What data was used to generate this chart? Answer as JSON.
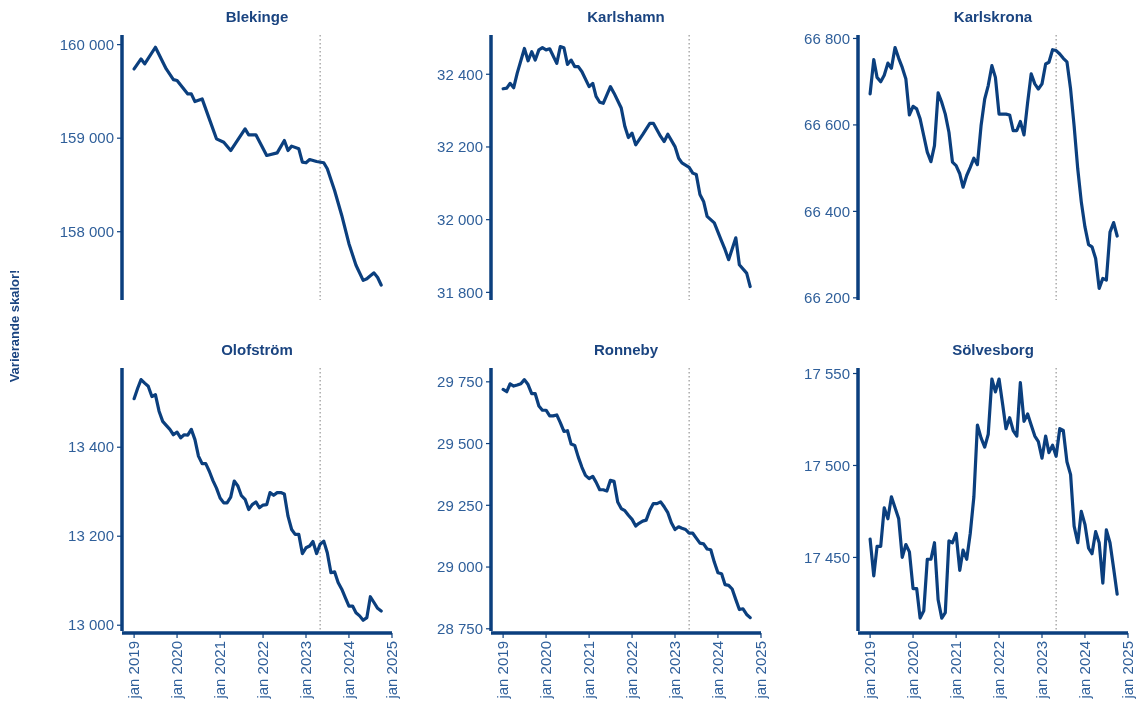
{
  "chart_data": [
    {
      "type": "line",
      "title": "Blekinge",
      "ylabel": "Varierande skalor!",
      "tick_labels": "y",
      "line_style": "solid",
      "xlim": [
        "2018-09-20",
        "2025-01-01"
      ],
      "ylim": [
        157270,
        160103
      ],
      "yticks": [
        {
          "value": 158000,
          "label": "158 000"
        },
        {
          "value": 159000,
          "label": "159 000"
        },
        {
          "value": 160000,
          "label": "160 000"
        }
      ],
      "ref_lines": [
        {
          "axis": "x",
          "value": "2023-05-01",
          "color": "#808080",
          "line_style": "dotted"
        }
      ],
      "series": [
        {
          "color": "#0b3f7e",
          "x": [
            "2019-01",
            "2019-03",
            "2019-04",
            "2019-07",
            "2019-10",
            "2019-12",
            "2020-01",
            "2020-04",
            "2020-05",
            "2020-06",
            "2020-08",
            "2020-10",
            "2020-12",
            "2021-02",
            "2021-04",
            "2021-08",
            "2021-09",
            "2021-11",
            "2022-02",
            "2022-05",
            "2022-07",
            "2022-08",
            "2022-09",
            "2022-11",
            "2022-12",
            "2023-01",
            "2023-02",
            "2023-04",
            "2023-06",
            "2023-07",
            "2023-09",
            "2023-11",
            "2024-01",
            "2024-03",
            "2024-05",
            "2024-06",
            "2024-07",
            "2024-08",
            "2024-09",
            "2024-10"
          ],
          "values": [
            159740,
            159847,
            159794,
            159972,
            159740,
            159626,
            159616,
            159473,
            159473,
            159391,
            159420,
            159206,
            158993,
            158957,
            158868,
            159100,
            159036,
            159036,
            158815,
            158843,
            158975,
            158868,
            158915,
            158886,
            158744,
            158737,
            158772,
            158751,
            158737,
            158673,
            158441,
            158174,
            157872,
            157641,
            157480,
            157498,
            157530,
            157560,
            157510,
            157430
          ]
        }
      ]
    },
    {
      "type": "line",
      "title": "Karlshamn",
      "tick_labels": "y",
      "line_style": "solid",
      "xlim": [
        "2018-09-20",
        "2025-01-01"
      ],
      "ylim": [
        31779,
        32508
      ],
      "yticks": [
        {
          "value": 31800,
          "label": "31 800"
        },
        {
          "value": 32000,
          "label": "32 000"
        },
        {
          "value": 32200,
          "label": "32 200"
        },
        {
          "value": 32400,
          "label": "32 400"
        }
      ],
      "ref_lines": [
        {
          "axis": "x",
          "value": "2023-05-01",
          "color": "#808080",
          "line_style": "dotted"
        }
      ],
      "series": [
        {
          "color": "#0b3f7e",
          "x": [
            "2019-01",
            "2019-02",
            "2019-03",
            "2019-04",
            "2019-05",
            "2019-07",
            "2019-08",
            "2019-09",
            "2019-10",
            "2019-11",
            "2019-12",
            "2020-01",
            "2020-02",
            "2020-04",
            "2020-05",
            "2020-06",
            "2020-07",
            "2020-08",
            "2020-09",
            "2020-10",
            "2020-11",
            "2021-01",
            "2021-02",
            "2021-03",
            "2021-04",
            "2021-05",
            "2021-07",
            "2021-08",
            "2021-10",
            "2021-11",
            "2021-12",
            "2022-01",
            "2022-02",
            "2022-04",
            "2022-06",
            "2022-07",
            "2022-09",
            "2022-10",
            "2022-11",
            "2023-01",
            "2023-02",
            "2023-03",
            "2023-05",
            "2023-06",
            "2023-07",
            "2023-08",
            "2023-09",
            "2023-10",
            "2023-12",
            "2024-02",
            "2024-03",
            "2024-04",
            "2024-06",
            "2024-07",
            "2024-09",
            "2024-10"
          ],
          "values": [
            32360,
            32362,
            32375,
            32363,
            32403,
            32471,
            32437,
            32462,
            32439,
            32467,
            32473,
            32467,
            32470,
            32430,
            32476,
            32473,
            32427,
            32439,
            32421,
            32421,
            32407,
            32366,
            32375,
            32339,
            32323,
            32320,
            32366,
            32348,
            32307,
            32256,
            32226,
            32238,
            32206,
            32234,
            32265,
            32265,
            32229,
            32215,
            32235,
            32201,
            32169,
            32156,
            32144,
            32128,
            32124,
            32069,
            32050,
            32009,
            31991,
            31941,
            31918,
            31890,
            31950,
            31876,
            31853,
            31816
          ]
        }
      ]
    },
    {
      "type": "line",
      "title": "Karlskrona",
      "tick_labels": "y",
      "line_style": "solid",
      "xlim": [
        "2018-09-20",
        "2025-01-01"
      ],
      "ylim": [
        66195,
        66808
      ],
      "yticks": [
        {
          "value": 66200,
          "label": "66 200"
        },
        {
          "value": 66400,
          "label": "66 400"
        },
        {
          "value": 66600,
          "label": "66 600"
        },
        {
          "value": 66800,
          "label": "66 800"
        }
      ],
      "ref_lines": [
        {
          "axis": "x",
          "value": "2023-05-01",
          "color": "#808080",
          "line_style": "dotted"
        }
      ],
      "x": [
        "2019-01",
        "2019-02",
        "2019-03",
        "2019-04",
        "2019-05",
        "2019-06",
        "2019-07",
        "2019-08",
        "2019-09",
        "2019-10",
        "2019-11",
        "2019-12",
        "2020-01",
        "2020-02",
        "2020-03",
        "2020-04",
        "2020-05",
        "2020-06",
        "2020-07",
        "2020-08",
        "2020-09",
        "2020-10",
        "2020-11",
        "2020-12",
        "2021-01",
        "2021-02",
        "2021-03",
        "2021-04",
        "2021-05",
        "2021-06",
        "2021-07",
        "2021-08",
        "2021-09",
        "2021-10",
        "2021-11",
        "2021-12",
        "2022-01",
        "2022-02",
        "2022-03",
        "2022-04",
        "2022-05",
        "2022-06",
        "2022-07",
        "2022-08",
        "2022-09",
        "2022-10",
        "2022-11",
        "2022-12",
        "2023-01",
        "2023-02",
        "2023-03",
        "2023-04",
        "2023-05",
        "2023-06",
        "2023-07",
        "2023-08",
        "2023-09",
        "2023-10",
        "2023-11",
        "2023-12",
        "2024-01",
        "2024-02",
        "2024-03",
        "2024-04",
        "2024-05",
        "2024-06",
        "2024-07",
        "2024-08",
        "2024-09",
        "2024-10"
      ],
      "series": [
        {
          "color": "#0b3f7e",
          "values": [
            66672,
            66751,
            66710,
            66700,
            66715,
            66743,
            66731,
            66779,
            66754,
            66733,
            66706,
            66623,
            66643,
            66637,
            66614,
            66575,
            66537,
            66515,
            66552,
            66674,
            66652,
            66625,
            66583,
            66514,
            66506,
            66487,
            66456,
            66483,
            66502,
            66523,
            66508,
            66598,
            66660,
            66691,
            66737,
            66710,
            66625,
            66625,
            66625,
            66623,
            66587,
            66587,
            66608,
            66577,
            66652,
            66718,
            66695,
            66683,
            66695,
            66741,
            66745,
            66774,
            66772,
            66764,
            66754,
            66746,
            66683,
            66598,
            66498,
            66422,
            66364,
            66323,
            66318,
            66291,
            66222,
            66245,
            66241,
            66352,
            66374,
            66343
          ]
        }
      ]
    },
    {
      "type": "line",
      "title": "Olofström",
      "line_style": "solid",
      "xlim": [
        "2018-09-20",
        "2025-01-01"
      ],
      "xticks": [
        {
          "value": "2019-01-01",
          "label": "jan 2019"
        },
        {
          "value": "2020-01-01",
          "label": "jan 2020"
        },
        {
          "value": "2021-01-01",
          "label": "jan 2021"
        },
        {
          "value": "2022-01-01",
          "label": "jan 2022"
        },
        {
          "value": "2023-01-01",
          "label": "jan 2023"
        },
        {
          "value": "2024-01-01",
          "label": "jan 2024"
        },
        {
          "value": "2025-01-01",
          "label": "jan 2025"
        }
      ],
      "ylim": [
        12987,
        13578
      ],
      "yticks": [
        {
          "value": 13000,
          "label": "13 000"
        },
        {
          "value": 13200,
          "label": "13 200"
        },
        {
          "value": 13400,
          "label": "13 400"
        }
      ],
      "ref_lines": [
        {
          "axis": "x",
          "value": "2023-05-01",
          "color": "#808080",
          "line_style": "dotted"
        }
      ],
      "x": [
        "2019-01",
        "2019-02",
        "2019-03",
        "2019-04",
        "2019-05",
        "2019-06",
        "2019-07",
        "2019-08",
        "2019-09",
        "2019-10",
        "2019-11",
        "2019-12",
        "2020-01",
        "2020-02",
        "2020-03",
        "2020-04",
        "2020-05",
        "2020-06",
        "2020-07",
        "2020-08",
        "2020-09",
        "2020-10",
        "2020-11",
        "2020-12",
        "2021-01",
        "2021-02",
        "2021-03",
        "2021-04",
        "2021-05",
        "2021-06",
        "2021-07",
        "2021-08",
        "2021-09",
        "2021-10",
        "2021-11",
        "2021-12",
        "2022-01",
        "2022-02",
        "2022-03",
        "2022-04",
        "2022-05",
        "2022-06",
        "2022-07",
        "2022-08",
        "2022-09",
        "2022-10",
        "2022-11",
        "2022-12",
        "2023-01",
        "2023-02",
        "2023-03",
        "2023-04",
        "2023-05",
        "2023-06",
        "2023-07",
        "2023-08",
        "2023-09",
        "2023-10",
        "2023-11",
        "2023-12",
        "2024-01",
        "2024-02",
        "2024-03",
        "2024-04",
        "2024-05",
        "2024-06",
        "2024-07",
        "2024-08",
        "2024-09",
        "2024-10"
      ],
      "series": [
        {
          "color": "#0b3f7e",
          "values": [
            13509,
            13533,
            13552,
            13544,
            13537,
            13514,
            13518,
            13481,
            13458,
            13449,
            13440,
            13428,
            13434,
            13421,
            13428,
            13427,
            13440,
            13417,
            13380,
            13363,
            13363,
            13346,
            13325,
            13308,
            13286,
            13275,
            13275,
            13288,
            13324,
            13313,
            13291,
            13283,
            13260,
            13271,
            13277,
            13264,
            13270,
            13271,
            13298,
            13292,
            13298,
            13298,
            13295,
            13245,
            13215,
            13204,
            13204,
            13161,
            13174,
            13178,
            13188,
            13161,
            13182,
            13189,
            13163,
            13118,
            13120,
            13096,
            13081,
            13062,
            13043,
            13043,
            13028,
            13021,
            13011,
            13017,
            13064,
            13051,
            13038,
            13032
          ]
        }
      ]
    },
    {
      "type": "line",
      "title": "Ronneby",
      "line_style": "solid",
      "xlim": [
        "2018-09-20",
        "2025-01-01"
      ],
      "xticks": [
        {
          "value": "2019-01-01",
          "label": "jan 2019"
        },
        {
          "value": "2020-01-01",
          "label": "jan 2020"
        },
        {
          "value": "2021-01-01",
          "label": "jan 2021"
        },
        {
          "value": "2022-01-01",
          "label": "jan 2022"
        },
        {
          "value": "2023-01-01",
          "label": "jan 2023"
        },
        {
          "value": "2024-01-01",
          "label": "jan 2024"
        },
        {
          "value": "2025-01-01",
          "label": "jan 2025"
        }
      ],
      "ylim": [
        28741,
        29806
      ],
      "yticks": [
        {
          "value": 28750,
          "label": "28 750"
        },
        {
          "value": 29000,
          "label": "29 000"
        },
        {
          "value": 29250,
          "label": "29 250"
        },
        {
          "value": 29500,
          "label": "29 500"
        },
        {
          "value": 29750,
          "label": "29 750"
        }
      ],
      "ref_lines": [
        {
          "axis": "x",
          "value": "2023-05-01",
          "color": "#808080",
          "line_style": "dotted"
        }
      ],
      "x": [
        "2019-01",
        "2019-02",
        "2019-03",
        "2019-04",
        "2019-05",
        "2019-06",
        "2019-07",
        "2019-08",
        "2019-09",
        "2019-10",
        "2019-11",
        "2019-12",
        "2020-01",
        "2020-02",
        "2020-03",
        "2020-04",
        "2020-05",
        "2020-06",
        "2020-07",
        "2020-08",
        "2020-09",
        "2020-10",
        "2020-11",
        "2020-12",
        "2021-01",
        "2021-02",
        "2021-03",
        "2021-04",
        "2021-05",
        "2021-06",
        "2021-07",
        "2021-08",
        "2021-09",
        "2021-10",
        "2021-11",
        "2021-12",
        "2022-01",
        "2022-02",
        "2022-03",
        "2022-04",
        "2022-05",
        "2022-06",
        "2022-07",
        "2022-08",
        "2022-09",
        "2022-10",
        "2022-11",
        "2022-12",
        "2023-01",
        "2023-02",
        "2023-03",
        "2023-04",
        "2023-05",
        "2023-06",
        "2023-07",
        "2023-08",
        "2023-09",
        "2023-10",
        "2023-11",
        "2023-12",
        "2024-01",
        "2024-02",
        "2024-03",
        "2024-04",
        "2024-05",
        "2024-06",
        "2024-07",
        "2024-08",
        "2024-09",
        "2024-10"
      ],
      "series": [
        {
          "color": "#0b3f7e",
          "values": [
            29719,
            29710,
            29742,
            29733,
            29737,
            29742,
            29759,
            29739,
            29702,
            29702,
            29652,
            29635,
            29635,
            29612,
            29612,
            29616,
            29585,
            29549,
            29552,
            29498,
            29492,
            29445,
            29404,
            29371,
            29358,
            29367,
            29344,
            29313,
            29313,
            29308,
            29351,
            29347,
            29263,
            29237,
            29228,
            29210,
            29193,
            29166,
            29177,
            29186,
            29190,
            29230,
            29257,
            29257,
            29264,
            29244,
            29220,
            29179,
            29152,
            29163,
            29157,
            29152,
            29137,
            29137,
            29117,
            29097,
            29094,
            29073,
            29070,
            29020,
            28977,
            28973,
            28929,
            28926,
            28911,
            28868,
            28828,
            28831,
            28808,
            28795
          ]
        }
      ]
    },
    {
      "type": "line",
      "title": "Sölvesborg",
      "line_style": "solid",
      "xlim": [
        "2018-09-20",
        "2025-01-01"
      ],
      "xticks": [
        {
          "value": "2019-01-01",
          "label": "jan 2019"
        },
        {
          "value": "2020-01-01",
          "label": "jan 2020"
        },
        {
          "value": "2021-01-01",
          "label": "jan 2021"
        },
        {
          "value": "2022-01-01",
          "label": "jan 2022"
        },
        {
          "value": "2023-01-01",
          "label": "jan 2023"
        },
        {
          "value": "2024-01-01",
          "label": "jan 2024"
        },
        {
          "value": "2025-01-01",
          "label": "jan 2025"
        }
      ],
      "ylim": [
        17410,
        17553
      ],
      "yticks": [
        {
          "value": 17450,
          "label": "17 450"
        },
        {
          "value": 17500,
          "label": "17 500"
        },
        {
          "value": 17550,
          "label": "17 550"
        }
      ],
      "ref_lines": [
        {
          "axis": "x",
          "value": "2023-05-01",
          "color": "#808080",
          "line_style": "dotted"
        }
      ],
      "x": [
        "2019-01",
        "2019-02",
        "2019-03",
        "2019-04",
        "2019-05",
        "2019-06",
        "2019-07",
        "2019-08",
        "2019-09",
        "2019-10",
        "2019-11",
        "2019-12",
        "2020-01",
        "2020-02",
        "2020-03",
        "2020-04",
        "2020-05",
        "2020-06",
        "2020-07",
        "2020-08",
        "2020-09",
        "2020-10",
        "2020-11",
        "2020-12",
        "2021-01",
        "2021-02",
        "2021-03",
        "2021-04",
        "2021-05",
        "2021-06",
        "2021-07",
        "2021-08",
        "2021-09",
        "2021-10",
        "2021-11",
        "2021-12",
        "2022-01",
        "2022-02",
        "2022-03",
        "2022-04",
        "2022-05",
        "2022-06",
        "2022-07",
        "2022-08",
        "2022-09",
        "2022-10",
        "2022-11",
        "2022-12",
        "2023-01",
        "2023-02",
        "2023-03",
        "2023-04",
        "2023-05",
        "2023-06",
        "2023-07",
        "2023-08",
        "2023-09",
        "2023-10",
        "2023-11",
        "2023-12",
        "2024-01",
        "2024-02",
        "2024-03",
        "2024-04",
        "2024-05",
        "2024-06",
        "2024-07",
        "2024-08",
        "2024-09",
        "2024-10"
      ],
      "series": [
        {
          "color": "#0b3f7e",
          "values": [
            17460,
            17440,
            17456,
            17456,
            17477,
            17471,
            17483,
            17477,
            17471,
            17450,
            17457,
            17453,
            17433,
            17433,
            17417,
            17421,
            17449,
            17449,
            17458,
            17427,
            17417,
            17420,
            17459,
            17458,
            17463,
            17443,
            17454,
            17449,
            17463,
            17483,
            17522,
            17515,
            17510,
            17517,
            17547,
            17540,
            17547,
            17533,
            17520,
            17526,
            17519,
            17516,
            17545,
            17524,
            17528,
            17522,
            17516,
            17513,
            17504,
            17516,
            17507,
            17511,
            17505,
            17520,
            17519,
            17502,
            17495,
            17467,
            17458,
            17475,
            17468,
            17455,
            17452,
            17464,
            17458,
            17436,
            17465,
            17458,
            17444,
            17430
          ]
        }
      ]
    }
  ]
}
